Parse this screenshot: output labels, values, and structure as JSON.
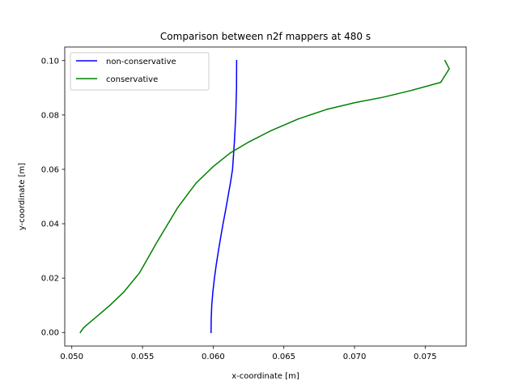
{
  "chart_data": {
    "type": "line",
    "title": "Comparison between n2f mappers at 480 s",
    "xlabel": "x-coordinate [m]",
    "ylabel": "y-coordinate [m]",
    "xlim": [
      0.0495,
      0.0779
    ],
    "ylim": [
      -0.005,
      0.105
    ],
    "xticks": [
      0.05,
      0.055,
      0.06,
      0.065,
      0.07,
      0.075
    ],
    "xtick_labels": [
      "0.050",
      "0.055",
      "0.060",
      "0.065",
      "0.070",
      "0.075"
    ],
    "yticks": [
      0.0,
      0.02,
      0.04,
      0.06,
      0.08,
      0.1
    ],
    "ytick_labels": [
      "0.00",
      "0.02",
      "0.04",
      "0.06",
      "0.08",
      "0.10"
    ],
    "grid": false,
    "legend_position": "upper-left",
    "series": [
      {
        "name": "non-conservative",
        "color": "#0000ff",
        "x": [
          0.05985,
          0.05986,
          0.0599,
          0.05998,
          0.06009,
          0.06022,
          0.06037,
          0.06053,
          0.0607,
          0.06088,
          0.06105,
          0.06122,
          0.06137,
          0.0615,
          0.0616,
          0.06165,
          0.06166
        ],
        "y": [
          0.0,
          0.005,
          0.01,
          0.015,
          0.02,
          0.025,
          0.03,
          0.035,
          0.04,
          0.045,
          0.05,
          0.055,
          0.06,
          0.07,
          0.08,
          0.09,
          0.1
        ]
      },
      {
        "name": "conservative",
        "color": "#008000",
        "x": [
          0.0506,
          0.0508,
          0.051,
          0.0518,
          0.0527,
          0.0537,
          0.0548,
          0.056,
          0.0575,
          0.0588,
          0.06,
          0.0612,
          0.0625,
          0.064,
          0.066,
          0.068,
          0.07,
          0.072,
          0.074,
          0.0761,
          0.0767,
          0.0764
        ],
        "y": [
          0.0,
          0.0015,
          0.0025,
          0.006,
          0.01,
          0.015,
          0.022,
          0.033,
          0.046,
          0.055,
          0.061,
          0.066,
          0.07,
          0.074,
          0.0785,
          0.082,
          0.0845,
          0.0865,
          0.089,
          0.092,
          0.097,
          0.1
        ]
      }
    ]
  }
}
